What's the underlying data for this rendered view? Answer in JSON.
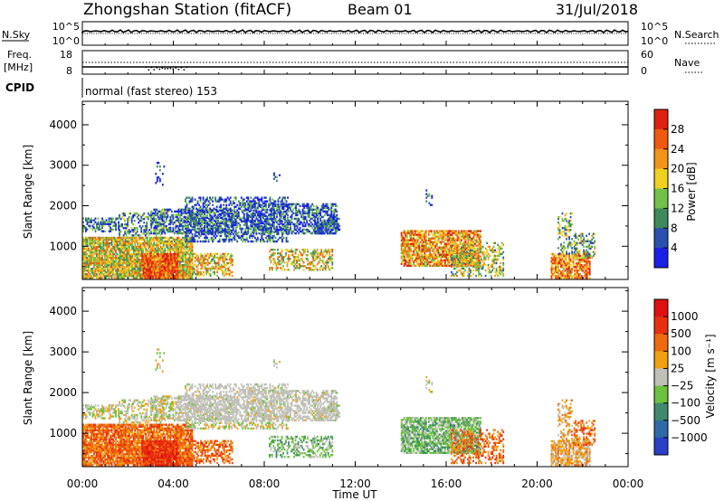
{
  "header": {
    "station": "Zhongshan Station (fitACF)",
    "beam": "Beam 01",
    "date": "31/Jul/2018"
  },
  "top_panels": {
    "nsky_label": "N.Sky",
    "nsky_ticks": [
      "10^5",
      "10^0"
    ],
    "nsearch_label": "N.Search",
    "nsearch_ticks": [
      "10^5",
      "10^0"
    ],
    "freq_label_line1": "Freq.",
    "freq_label_line2": "[MHz]",
    "freq_ticks": [
      "18",
      "8"
    ],
    "nave_label": "Nave",
    "nave_ticks": [
      "60",
      "0"
    ],
    "cpid_label": "CPID",
    "cpid_text": "normal (fast stereo) 153"
  },
  "chart_data": [
    {
      "type": "heatmap",
      "title": "",
      "xlabel": "Time UT",
      "ylabel": "Slant Range [km]",
      "x_ticks": [
        "00:00",
        "04:00",
        "08:00",
        "12:00",
        "16:00",
        "20:00",
        "00:00"
      ],
      "xlim_hours": [
        0,
        24
      ],
      "y_ticks": [
        1000,
        2000,
        3000,
        4000
      ],
      "ylim_km": [
        180,
        4580
      ],
      "colorbar_label": "Power [dB]",
      "colorbar_ticks": [
        "28",
        "24",
        "20",
        "16",
        "12",
        "8",
        "4"
      ],
      "colorbar_range": [
        0,
        32
      ],
      "colors": [
        "#1a20e6",
        "#2a50b0",
        "#3f8a5c",
        "#72c24a",
        "#f0d020",
        "#f29418",
        "#ef5a0e",
        "#e02010"
      ]
    },
    {
      "type": "heatmap",
      "title": "",
      "xlabel": "Time UT",
      "ylabel": "Slant Range [km]",
      "x_ticks": [
        "00:00",
        "04:00",
        "08:00",
        "12:00",
        "16:00",
        "20:00",
        "00:00"
      ],
      "xlim_hours": [
        0,
        24
      ],
      "y_ticks": [
        1000,
        2000,
        3000,
        4000
      ],
      "ylim_km": [
        180,
        4580
      ],
      "colorbar_label": "Velocity [m s⁻¹]",
      "colorbar_ticks": [
        "1000",
        "500",
        "100",
        "25",
        "−25",
        "−100",
        "−500",
        "−1000"
      ],
      "colors": [
        "#2a40c8",
        "#2f6aa8",
        "#3f8a6c",
        "#6cc23c",
        "#c0c0b8",
        "#f0a010",
        "#ef6a0e",
        "#e83010",
        "#e01010"
      ]
    }
  ]
}
